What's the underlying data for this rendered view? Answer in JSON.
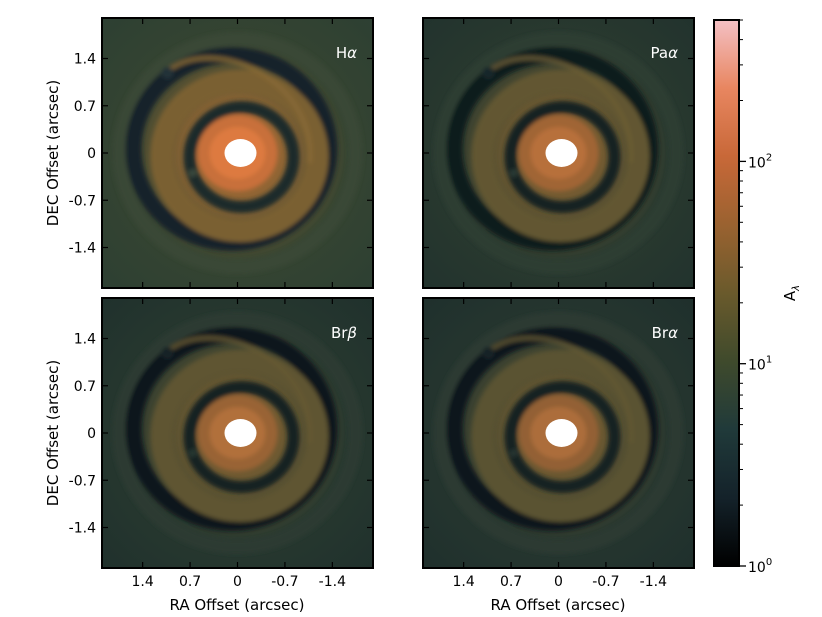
{
  "chart_data": {
    "type": "heatmap",
    "panels": [
      {
        "name": "Hα",
        "label_main": "H",
        "label_greek": "α",
        "strength": 1.0
      },
      {
        "name": "Paα",
        "label_main": "Pa",
        "label_greek": "α",
        "strength": 0.62
      },
      {
        "name": "Brβ",
        "label_main": "Br",
        "label_greek": "β",
        "strength": 0.56
      },
      {
        "name": "Brα",
        "label_main": "Br",
        "label_greek": "α",
        "strength": 0.5
      }
    ],
    "xlabel": "RA Offset (arcsec)",
    "ylabel": "DEC Offset (arcsec)",
    "xticks": [
      1.4,
      0.7,
      0,
      -0.7,
      -1.4
    ],
    "xtick_labels": [
      "1.4",
      "0.7",
      "0",
      "-0.7",
      "-1.4"
    ],
    "yticks": [
      1.4,
      0.7,
      0,
      -0.7,
      -1.4
    ],
    "ytick_labels": [
      "1.4",
      "0.7",
      "0",
      "-0.7",
      "-1.4"
    ],
    "xlim": [
      2.0,
      -2.0
    ],
    "ylim": [
      -2.0,
      2.0
    ],
    "colorbar": {
      "label_main": "A",
      "label_sub": "λ",
      "scale": "log",
      "range": [
        1,
        500
      ],
      "ticks": [
        {
          "value": 1,
          "base": "10",
          "exp": "0"
        },
        {
          "value": 10,
          "base": "10",
          "exp": "1"
        },
        {
          "value": 100,
          "base": "10",
          "exp": "2"
        }
      ],
      "colors": [
        "#000000",
        "#14222a",
        "#203a3a",
        "#3f4a2c",
        "#6a5a2c",
        "#9a6230",
        "#c86838",
        "#e88660",
        "#f4c0c4"
      ]
    }
  }
}
